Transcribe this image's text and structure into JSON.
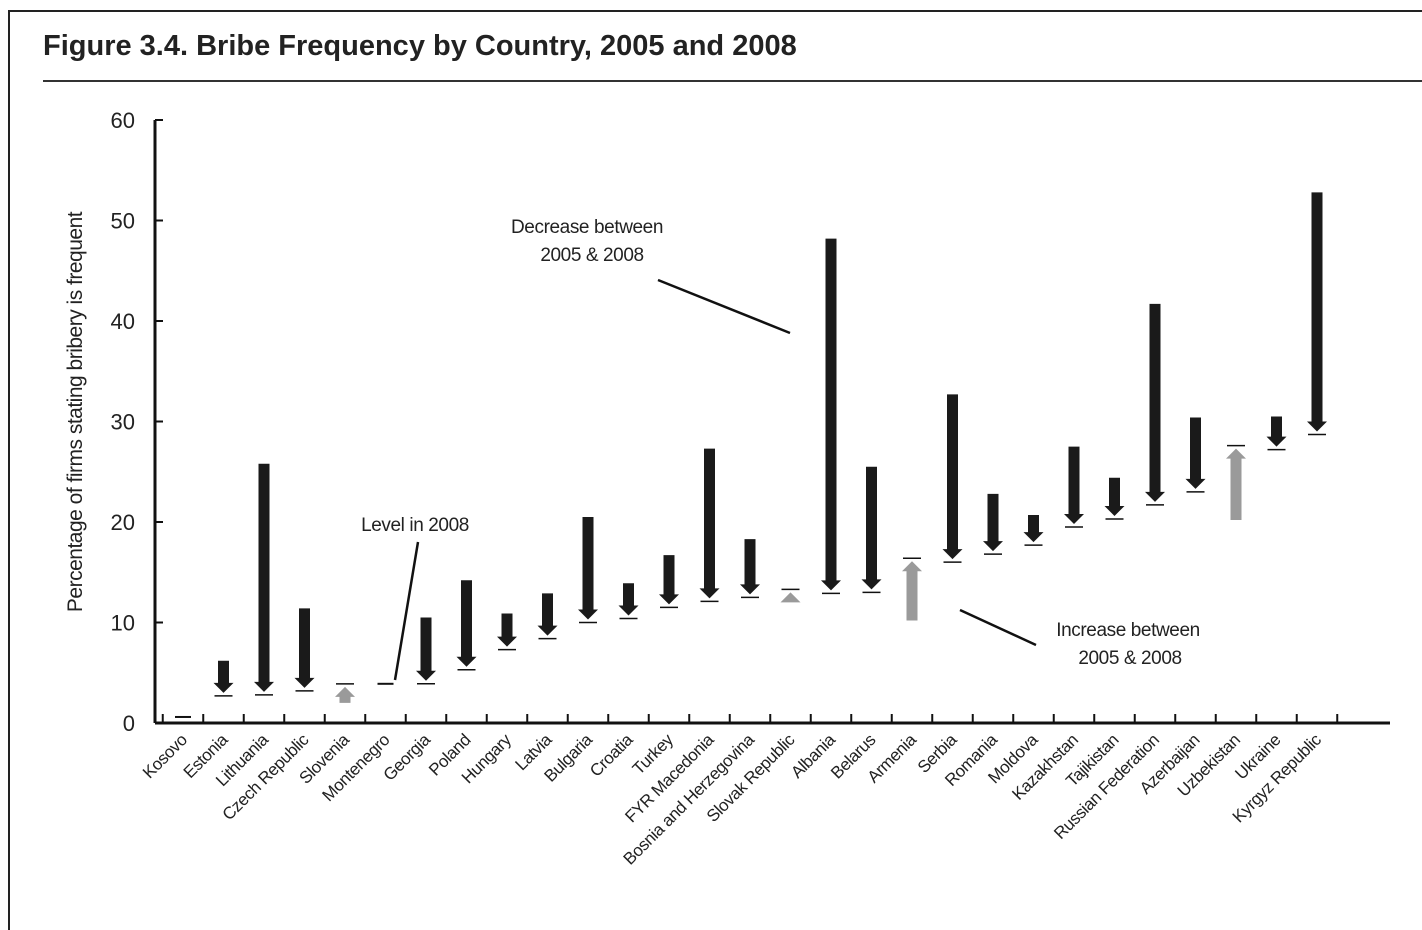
{
  "figure": {
    "title": "Figure 3.4. Bribe Frequency by Country, 2005 and 2008"
  },
  "chart_data": {
    "type": "arrow-range",
    "title": "Figure 3.4. Bribe Frequency by Country, 2005 and 2008",
    "xlabel": "",
    "ylabel": "Percentage of firms stating bribery is frequent",
    "ylim": [
      0,
      60
    ],
    "yticks": [
      "0",
      "10",
      "20",
      "30",
      "40",
      "50",
      "60"
    ],
    "colors": {
      "decrease": "#1a1a1a",
      "increase": "#9a9a9a"
    },
    "categories": [
      "Kosovo",
      "Estonia",
      "Lithuania",
      "Czech Republic",
      "Slovenia",
      "Montenegro",
      "Georgia",
      "Poland",
      "Hungary",
      "Latvia",
      "Bulgaria",
      "Croatia",
      "Turkey",
      "FYR Macedonia",
      "Bosnia and Herzegovina",
      "Slovak Republic",
      "Albania",
      "Belarus",
      "Armenia",
      "Serbia",
      "Romania",
      "Moldova",
      "Kazakhstan",
      "Tajikistan",
      "Russian Federation",
      "Azerbaijan",
      "Uzbekistan",
      "Ukraine",
      "Kyrgyz Republic"
    ],
    "series": [
      {
        "name": "2005",
        "values": [
          null,
          6.2,
          25.8,
          11.4,
          2.0,
          null,
          10.5,
          14.2,
          10.9,
          12.9,
          20.5,
          13.9,
          16.7,
          27.3,
          18.3,
          12.0,
          48.2,
          25.5,
          10.2,
          32.7,
          22.8,
          20.7,
          27.5,
          24.4,
          41.7,
          30.4,
          20.2,
          30.5,
          52.8
        ]
      },
      {
        "name": "2008",
        "values": [
          0.6,
          3.0,
          3.1,
          3.5,
          3.6,
          3.9,
          4.2,
          5.6,
          7.6,
          8.7,
          10.3,
          10.7,
          11.8,
          12.4,
          12.8,
          13.0,
          13.2,
          13.3,
          16.1,
          16.3,
          17.1,
          18.0,
          19.8,
          20.6,
          22.0,
          23.3,
          27.3,
          27.5,
          29.0
        ]
      }
    ],
    "annotations": [
      {
        "lines": [
          "Decrease between",
          "2005 & 2008"
        ]
      },
      {
        "lines": [
          "Level in 2008"
        ]
      },
      {
        "lines": [
          "Increase between",
          "2005 & 2008"
        ]
      }
    ],
    "grid": false,
    "legend": "none"
  }
}
